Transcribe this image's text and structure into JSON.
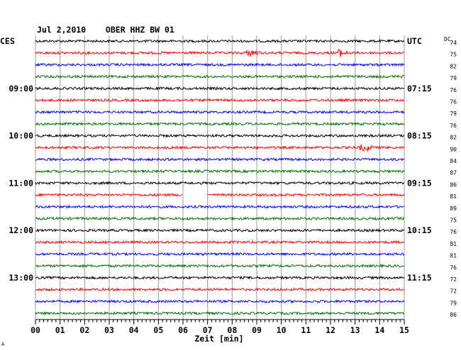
{
  "chart_data": {
    "type": "line",
    "title": "Jul 2,2010    OBER HHZ BW 01",
    "left_timezone": "CES",
    "right_timezone": "UTC",
    "dc_label": "DC",
    "xlabel": "Zeit [min]",
    "xlim": [
      0,
      15
    ],
    "x_ticks": [
      "00",
      "01",
      "02",
      "03",
      "04",
      "05",
      "06",
      "07",
      "08",
      "09",
      "10",
      "11",
      "12",
      "13",
      "14",
      "15"
    ],
    "left_hour_labels": [
      {
        "row": 4,
        "label": "09:00"
      },
      {
        "row": 8,
        "label": "10:00"
      },
      {
        "row": 12,
        "label": "11:00"
      },
      {
        "row": 16,
        "label": "12:00"
      },
      {
        "row": 20,
        "label": "13:00"
      }
    ],
    "right_hour_labels": [
      {
        "row": 0,
        "label": "UTC"
      },
      {
        "row": 4,
        "label": "07:15"
      },
      {
        "row": 8,
        "label": "08:15"
      },
      {
        "row": 12,
        "label": "09:15"
      },
      {
        "row": 16,
        "label": "10:15"
      },
      {
        "row": 20,
        "label": "11:15"
      }
    ],
    "trace_colors": [
      "#000000",
      "#ff0000",
      "#0000ff",
      "#007000"
    ],
    "dc_values": [
      "74",
      "75",
      "82",
      "79",
      "76",
      "76",
      "79",
      "76",
      "82",
      "90",
      "84",
      "87",
      "86",
      "81",
      "89",
      "75",
      "76",
      "81",
      "81",
      "76",
      "72",
      "72",
      "79",
      "86"
    ],
    "data_gaps": [
      {
        "row": 13,
        "from_min": 6.0,
        "to_min": 7.0
      }
    ],
    "events": [
      {
        "row": 1,
        "at_min": 8.8
      },
      {
        "row": 1,
        "at_min": 12.4
      },
      {
        "row": 9,
        "at_min": 13.4
      }
    ],
    "grid": true
  },
  "footer_mark": "A"
}
